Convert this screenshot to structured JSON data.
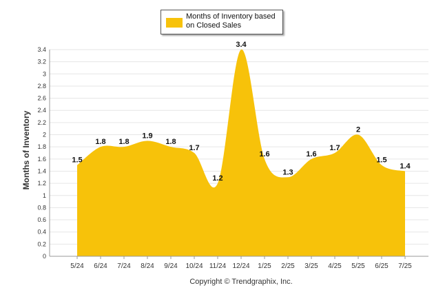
{
  "chart_data": {
    "type": "area",
    "title": "",
    "ylabel": "Months of Inventory",
    "xlabel": "",
    "categories": [
      "5/24",
      "6/24",
      "7/24",
      "8/24",
      "9/24",
      "10/24",
      "11/24",
      "12/24",
      "1/25",
      "2/25",
      "3/25",
      "4/25",
      "5/25",
      "6/25",
      "7/25"
    ],
    "series": [
      {
        "name": "Months of Inventory based on Closed Sales",
        "values": [
          1.5,
          1.8,
          1.8,
          1.9,
          1.8,
          1.7,
          1.2,
          3.4,
          1.6,
          1.3,
          1.6,
          1.7,
          2,
          1.5,
          1.4
        ],
        "labels": [
          "1.5",
          "1.8",
          "1.8",
          "1.9",
          "1.8",
          "1.7",
          "1.2",
          "3.4",
          "1.6",
          "1.3",
          "1.6",
          "1.7",
          "2",
          "1.5",
          "1.4"
        ]
      }
    ],
    "ylim": [
      0,
      3.4
    ],
    "yticks": [
      "0",
      "0.2",
      "0.4",
      "0.6",
      "0.8",
      "1",
      "1.2",
      "1.4",
      "1.6",
      "1.8",
      "2",
      "2.2",
      "2.4",
      "2.6",
      "2.8",
      "3",
      "3.2",
      "3.4"
    ],
    "grid": true,
    "legend": "top-center",
    "colors": {
      "area": "#F7C20A",
      "grid": "#e6e6e6",
      "axis": "#999999"
    }
  },
  "legend": {
    "label": "Months of Inventory based on Closed Sales"
  },
  "footer": {
    "copyright": "Copyright © Trendgraphix, Inc."
  }
}
